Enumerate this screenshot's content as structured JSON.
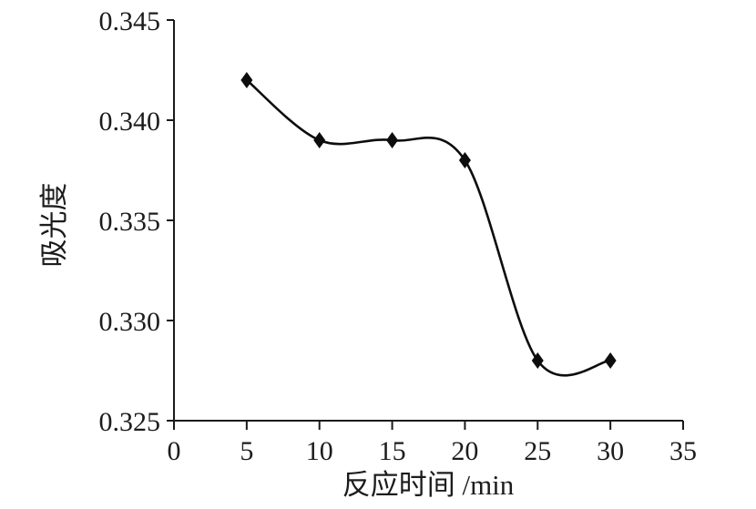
{
  "chart_data": {
    "type": "line",
    "title": "",
    "xlabel": "反应时间 /min",
    "ylabel": "吸光度",
    "x": [
      5,
      10,
      15,
      20,
      25,
      30
    ],
    "y": [
      0.342,
      0.339,
      0.339,
      0.338,
      0.328,
      0.328
    ],
    "xlim": [
      0,
      35
    ],
    "ylim": [
      0.325,
      0.345
    ],
    "x_tick_labels": [
      "0",
      "5",
      "10",
      "15",
      "20",
      "25",
      "30",
      "35"
    ],
    "x_tick_values": [
      0,
      5,
      10,
      15,
      20,
      25,
      30,
      35
    ],
    "y_tick_labels": [
      "0.325",
      "0.330",
      "0.335",
      "0.340",
      "0.345"
    ],
    "y_tick_values": [
      0.325,
      0.33,
      0.335,
      0.34,
      0.345
    ],
    "marker": "diamond",
    "grid": false,
    "legend": false,
    "line_color": "#0d0d0d",
    "axis_color": "#1a1a1a",
    "text_color": "#1c1c1c",
    "background_color": "#ffffff"
  }
}
